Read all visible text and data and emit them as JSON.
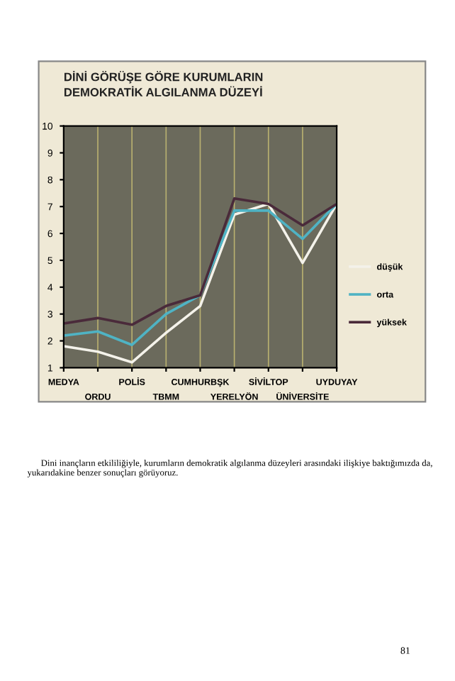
{
  "chart_data": {
    "type": "line",
    "title": "DİNİ GÖRÜŞE GÖRE KURUMLARIN\nDEMOKRATİK ALGILANMA DÜZEYİ",
    "categories": [
      "MEDYA",
      "ORDU",
      "POLİS",
      "TBMM",
      "CUMHURBŞK",
      "YERELYÖN",
      "SİVİLTOP",
      "ÜNİVERSİTE",
      "UYDUYAY"
    ],
    "series": [
      {
        "name": "düşük",
        "color": "#f4f2ea",
        "values": [
          1.8,
          1.6,
          1.2,
          2.3,
          3.3,
          6.7,
          7.1,
          4.9,
          7.1
        ]
      },
      {
        "name": "orta",
        "color": "#4fb3c4",
        "values": [
          2.2,
          2.35,
          1.85,
          3.0,
          3.7,
          6.85,
          6.85,
          5.8,
          7.1
        ]
      },
      {
        "name": "yüksek",
        "color": "#4a2a3a",
        "values": [
          2.65,
          2.85,
          2.6,
          3.3,
          3.7,
          7.3,
          7.1,
          6.3,
          7.1
        ]
      }
    ],
    "ylim": [
      1,
      10
    ],
    "yticks": [
      1,
      2,
      3,
      4,
      5,
      6,
      7,
      8,
      9,
      10
    ],
    "grid": "x",
    "legend": "right",
    "marker": "none",
    "line_style": "solid",
    "annotations": [
      "Dini inançların etkililiğiyle, kurumların demokratik algılanma düzeyleri arasındaki ilişkiye baktığımızda da, yukarıdakine benzer sonuçları görüyoruz.",
      "81"
    ]
  }
}
